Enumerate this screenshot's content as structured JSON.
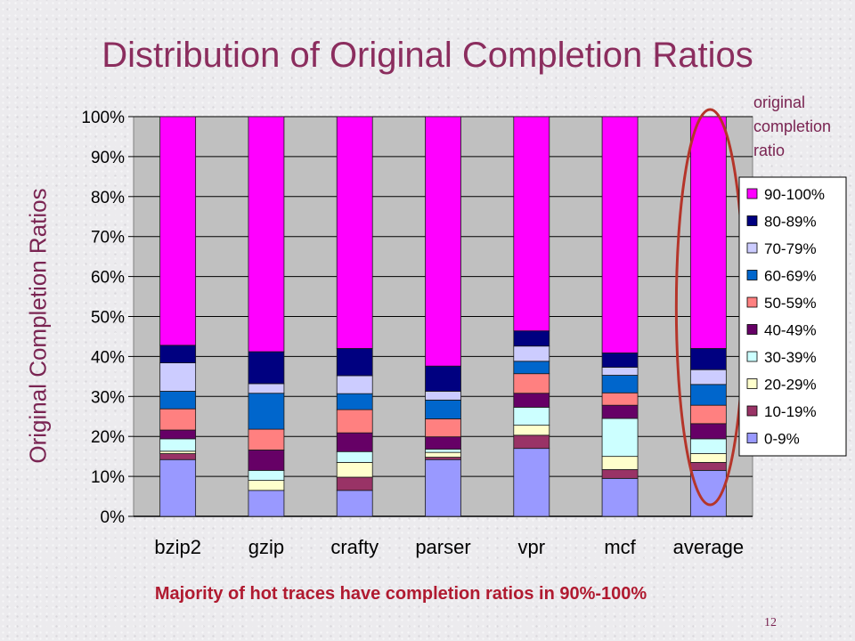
{
  "slide": {
    "title": "Distribution of Original Completion Ratios",
    "ylabel": "Original Completion Ratios",
    "legend_title": [
      "original",
      "completion",
      "ratio"
    ],
    "caption": "Majority of hot traces have completion ratios in 90%-100%",
    "page_number": "12"
  },
  "colors": {
    "title": "#8b2d5e",
    "caption": "#b01a30",
    "plot_bg": "#c0c0c0",
    "highlight_ellipse": "#b5352a"
  },
  "chart_data": {
    "type": "bar",
    "stacked": true,
    "percent": true,
    "title": "",
    "xlabel": "",
    "ylabel": "",
    "ylim": [
      0,
      100
    ],
    "yticks": [
      "0%",
      "10%",
      "20%",
      "30%",
      "40%",
      "50%",
      "60%",
      "70%",
      "80%",
      "90%",
      "100%"
    ],
    "grid": true,
    "legend_position": "right",
    "highlighted_category": "average",
    "categories": [
      "bzip2",
      "gzip",
      "crafty",
      "parser",
      "vpr",
      "mcf",
      "average"
    ],
    "series": [
      {
        "name": "0-9%",
        "color": "#9999ff",
        "values": [
          14.2,
          6.5,
          6.5,
          14.2,
          17.0,
          9.5,
          11.5
        ]
      },
      {
        "name": "10-19%",
        "color": "#993366",
        "values": [
          1.5,
          0.0,
          3.3,
          0.6,
          3.3,
          2.2,
          2.0
        ]
      },
      {
        "name": "20-29%",
        "color": "#ffffcc",
        "values": [
          0.6,
          2.5,
          3.7,
          1.2,
          2.5,
          3.3,
          2.2
        ]
      },
      {
        "name": "30-39%",
        "color": "#ccffff",
        "values": [
          3.1,
          2.5,
          2.7,
          0.8,
          4.5,
          9.5,
          3.7
        ]
      },
      {
        "name": "40-49%",
        "color": "#660066",
        "values": [
          2.2,
          5.1,
          4.7,
          3.1,
          3.5,
          3.3,
          3.8
        ]
      },
      {
        "name": "50-59%",
        "color": "#ff8080",
        "values": [
          5.3,
          5.2,
          5.8,
          4.5,
          4.9,
          3.1,
          4.6
        ]
      },
      {
        "name": "60-69%",
        "color": "#0066cc",
        "values": [
          4.4,
          9.0,
          4.0,
          4.7,
          3.1,
          4.4,
          5.2
        ]
      },
      {
        "name": "70-79%",
        "color": "#ccccff",
        "values": [
          7.1,
          2.4,
          4.5,
          2.2,
          3.8,
          2.0,
          3.7
        ]
      },
      {
        "name": "80-89%",
        "color": "#000080",
        "values": [
          4.4,
          8.0,
          6.8,
          6.3,
          3.8,
          3.6,
          5.3
        ]
      },
      {
        "name": "90-100%",
        "color": "#ff00ff",
        "values": [
          57.2,
          58.8,
          58.0,
          62.4,
          53.6,
          59.1,
          58.0
        ]
      }
    ]
  }
}
